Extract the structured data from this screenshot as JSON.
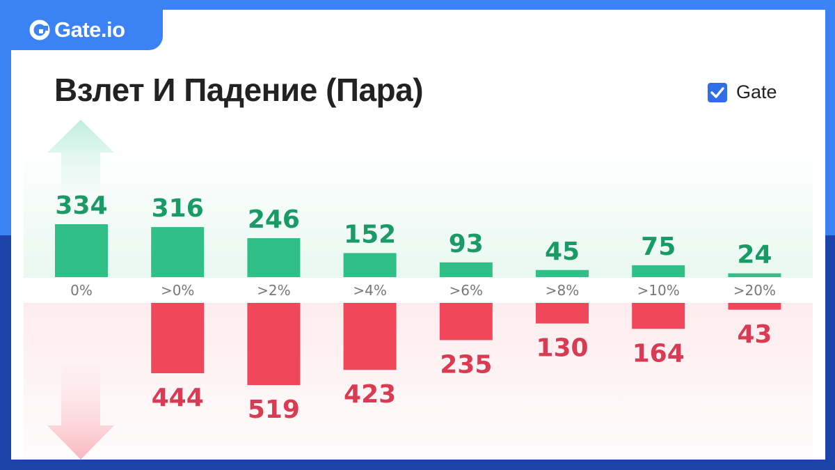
{
  "brand": {
    "name": "Gate.io"
  },
  "title": "Взлет И Падение (Пара)",
  "legend": {
    "label": "Gate",
    "checked": true
  },
  "colors": {
    "up": "#2fbf87",
    "up_text": "#1a9a66",
    "down": "#f0475b",
    "down_text": "#d93b52",
    "tick": "#777777",
    "brand": "#3b82f5",
    "checkbox": "#2f6ee8"
  },
  "chart_data": {
    "type": "bar",
    "title": "Взлет И Падение (Пара)",
    "categories": [
      "0%",
      ">0%",
      ">2%",
      ">4%",
      ">6%",
      ">8%",
      ">10%",
      ">20%"
    ],
    "series": [
      {
        "name": "",
        "direction": "up",
        "values": [
          334,
          316,
          246,
          152,
          93,
          45,
          75,
          24
        ]
      },
      {
        "name": "",
        "direction": "down",
        "values": [
          null,
          444,
          519,
          423,
          235,
          130,
          164,
          43
        ]
      }
    ],
    "legend": [
      "Gate"
    ],
    "grid": false
  }
}
